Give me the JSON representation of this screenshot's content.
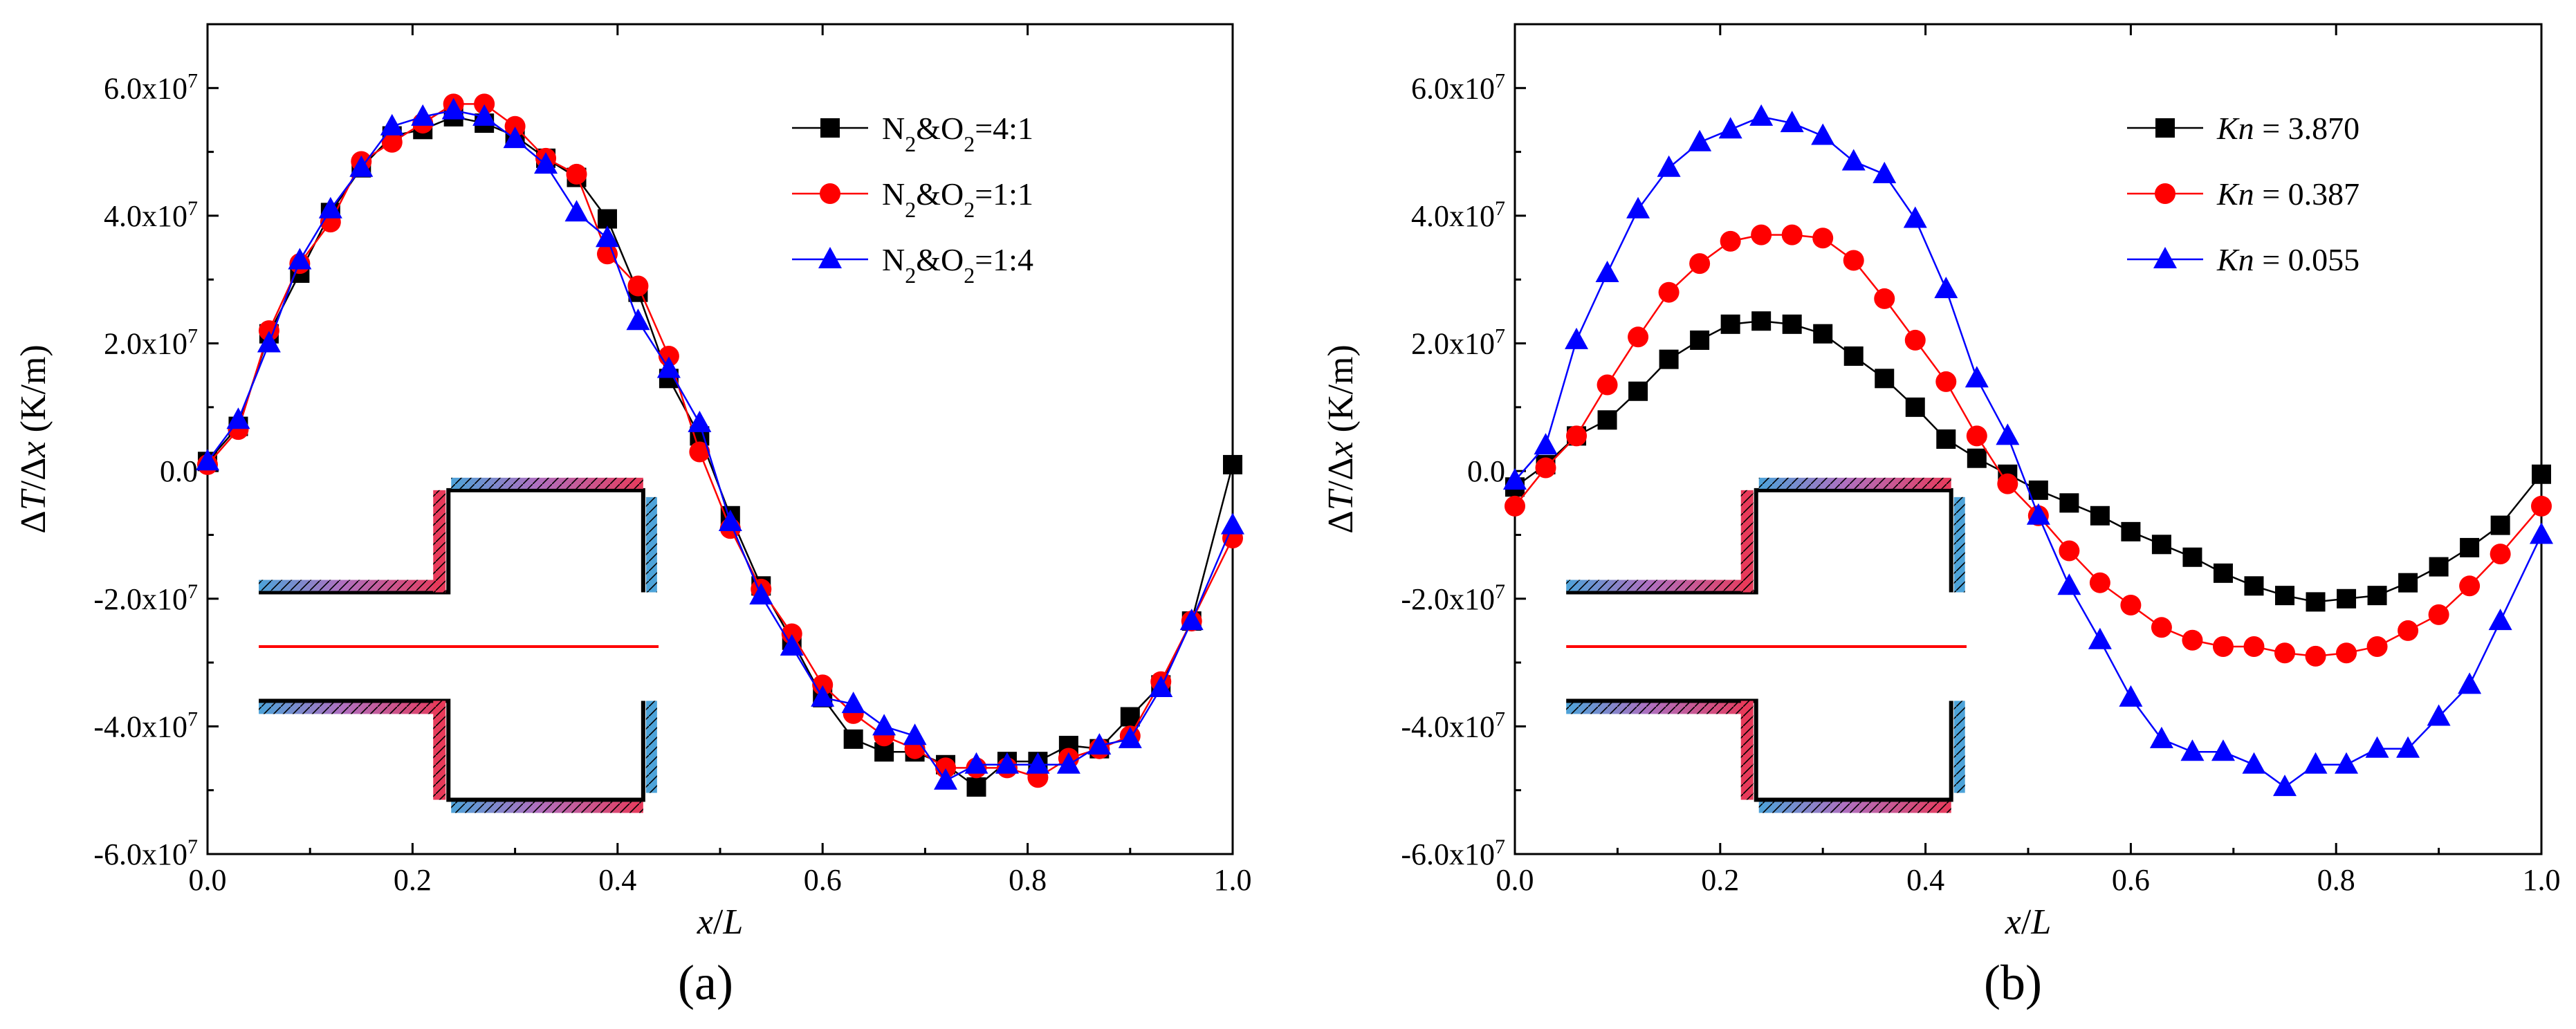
{
  "figure_captions": [
    "(a)",
    "(b)"
  ],
  "chart_data": [
    {
      "type": "line",
      "caption": "(a)",
      "xlabel": "x/L",
      "ylabel": "ΔT/Δx (K/m)",
      "xlim": [
        0.0,
        1.0
      ],
      "ylim": [
        -60000000,
        70000000
      ],
      "xticks": [
        "0.0",
        "0.2",
        "0.4",
        "0.6",
        "0.8",
        "1.0"
      ],
      "yticks": [
        "-6.0x10^7",
        "-4.0x10^7",
        "-2.0x10^7",
        "0.0",
        "2.0x10^7",
        "4.0x10^7",
        "6.0x10^7"
      ],
      "legend_position": "top-right",
      "grid": false,
      "x": [
        0.0,
        0.03,
        0.06,
        0.09,
        0.12,
        0.15,
        0.18,
        0.21,
        0.24,
        0.27,
        0.3,
        0.33,
        0.36,
        0.39,
        0.42,
        0.45,
        0.48,
        0.51,
        0.54,
        0.57,
        0.6,
        0.63,
        0.66,
        0.69,
        0.72,
        0.75,
        0.78,
        0.81,
        0.84,
        0.87,
        0.9,
        0.93,
        0.96,
        1.0
      ],
      "series": [
        {
          "name": "N2&O2=4:1",
          "legend_parts": [
            [
              "N",
              ""
            ],
            [
              "2",
              "sub"
            ],
            [
              "&O",
              ""
            ],
            [
              "2",
              "sub"
            ],
            [
              "=4:1",
              ""
            ]
          ],
          "color": "#000000",
          "marker": "square",
          "values": [
            1500000,
            7000000,
            21500000,
            31000000,
            40500000,
            47500000,
            52500000,
            53500000,
            55500000,
            54500000,
            52500000,
            49000000,
            46000000,
            39500000,
            28000000,
            14500000,
            5500000,
            -7000000,
            -18000000,
            -26500000,
            -35500000,
            -42000000,
            -44000000,
            -44000000,
            -46000000,
            -49500000,
            -45500000,
            -45500000,
            -43000000,
            -43500000,
            -38500000,
            -33500000,
            -23500000,
            1000000
          ]
        },
        {
          "name": "N2&O2=1:1",
          "legend_parts": [
            [
              "N",
              ""
            ],
            [
              "2",
              "sub"
            ],
            [
              "&O",
              ""
            ],
            [
              "2",
              "sub"
            ],
            [
              "=1:1",
              ""
            ]
          ],
          "color": "#ff0000",
          "marker": "circle",
          "values": [
            1000000,
            6500000,
            22000000,
            32500000,
            39000000,
            48500000,
            51500000,
            54500000,
            57500000,
            57500000,
            54000000,
            49000000,
            46500000,
            34000000,
            29000000,
            18000000,
            3000000,
            -9000000,
            -18500000,
            -25500000,
            -33500000,
            -38000000,
            -41500000,
            -43500000,
            -46500000,
            -46500000,
            -46500000,
            -48000000,
            -45000000,
            -43500000,
            -41500000,
            -33000000,
            -23500000,
            -10500000
          ]
        },
        {
          "name": "N2&O2=1:4",
          "legend_parts": [
            [
              "N",
              ""
            ],
            [
              "2",
              "sub"
            ],
            [
              "&O",
              ""
            ],
            [
              "2",
              "sub"
            ],
            [
              "=1:4",
              ""
            ]
          ],
          "color": "#0000ff",
          "marker": "triangle",
          "values": [
            1500000,
            8000000,
            20000000,
            33000000,
            41000000,
            47500000,
            54000000,
            55500000,
            56500000,
            55500000,
            52000000,
            48000000,
            40500000,
            36500000,
            23500000,
            16000000,
            7500000,
            -8000000,
            -19500000,
            -27500000,
            -35500000,
            -36500000,
            -40000000,
            -41500000,
            -48500000,
            -46000000,
            -46000000,
            -46000000,
            -46000000,
            -43000000,
            -42000000,
            -34000000,
            -23500000,
            -8500000
          ]
        }
      ]
    },
    {
      "type": "line",
      "caption": "(b)",
      "xlabel": "x/L",
      "ylabel": "ΔT/Δx (K/m)",
      "xlim": [
        0.0,
        1.0
      ],
      "ylim": [
        -60000000,
        70000000
      ],
      "xticks": [
        "0.0",
        "0.2",
        "0.4",
        "0.6",
        "0.8",
        "1.0"
      ],
      "yticks": [
        "-6.0x10^7",
        "-4.0x10^7",
        "-2.0x10^7",
        "0.0",
        "2.0x10^7",
        "4.0x10^7",
        "6.0x10^7"
      ],
      "legend_position": "top-right",
      "grid": false,
      "x": [
        0.0,
        0.03,
        0.06,
        0.09,
        0.12,
        0.15,
        0.18,
        0.21,
        0.24,
        0.27,
        0.3,
        0.33,
        0.36,
        0.39,
        0.42,
        0.45,
        0.48,
        0.51,
        0.54,
        0.57,
        0.6,
        0.63,
        0.66,
        0.69,
        0.72,
        0.75,
        0.78,
        0.81,
        0.84,
        0.87,
        0.9,
        0.93,
        0.96,
        1.0
      ],
      "series": [
        {
          "name": "Kn = 3.870",
          "legend_parts": [
            [
              "Kn",
              "ital"
            ],
            [
              " = 3.870",
              ""
            ]
          ],
          "color": "#000000",
          "marker": "square",
          "values": [
            -2500000,
            1000000,
            5500000,
            8000000,
            12500000,
            17500000,
            20500000,
            23000000,
            23500000,
            23000000,
            21500000,
            18000000,
            14500000,
            10000000,
            5000000,
            2000000,
            -500000,
            -3000000,
            -5000000,
            -7000000,
            -9500000,
            -11500000,
            -13500000,
            -16000000,
            -18000000,
            -19500000,
            -20500000,
            -20000000,
            -19500000,
            -17500000,
            -15000000,
            -12000000,
            -8500000,
            -500000
          ]
        },
        {
          "name": "Kn = 0.387",
          "legend_parts": [
            [
              "Kn",
              "ital"
            ],
            [
              " = 0.387",
              ""
            ]
          ],
          "color": "#ff0000",
          "marker": "circle",
          "values": [
            -5500000,
            500000,
            5500000,
            13500000,
            21000000,
            28000000,
            32500000,
            36000000,
            37000000,
            37000000,
            36500000,
            33000000,
            27000000,
            20500000,
            14000000,
            5500000,
            -2000000,
            -7000000,
            -12500000,
            -17500000,
            -21000000,
            -24500000,
            -26500000,
            -27500000,
            -27500000,
            -28500000,
            -29000000,
            -28500000,
            -27500000,
            -25000000,
            -22500000,
            -18000000,
            -13000000,
            -5500000
          ]
        },
        {
          "name": "Kn = 0.055",
          "legend_parts": [
            [
              "Kn",
              "ital"
            ],
            [
              " = 0.055",
              ""
            ]
          ],
          "color": "#0000ff",
          "marker": "triangle",
          "values": [
            -1500000,
            4000000,
            20500000,
            31000000,
            41000000,
            47500000,
            51500000,
            53500000,
            55500000,
            54500000,
            52500000,
            48500000,
            46500000,
            39500000,
            28500000,
            14500000,
            5500000,
            -7000000,
            -18000000,
            -26500000,
            -35500000,
            -42000000,
            -44000000,
            -44000000,
            -46000000,
            -49500000,
            -46000000,
            -46000000,
            -43500000,
            -43500000,
            -38500000,
            -33500000,
            -23500000,
            -10000000
          ]
        }
      ]
    }
  ]
}
